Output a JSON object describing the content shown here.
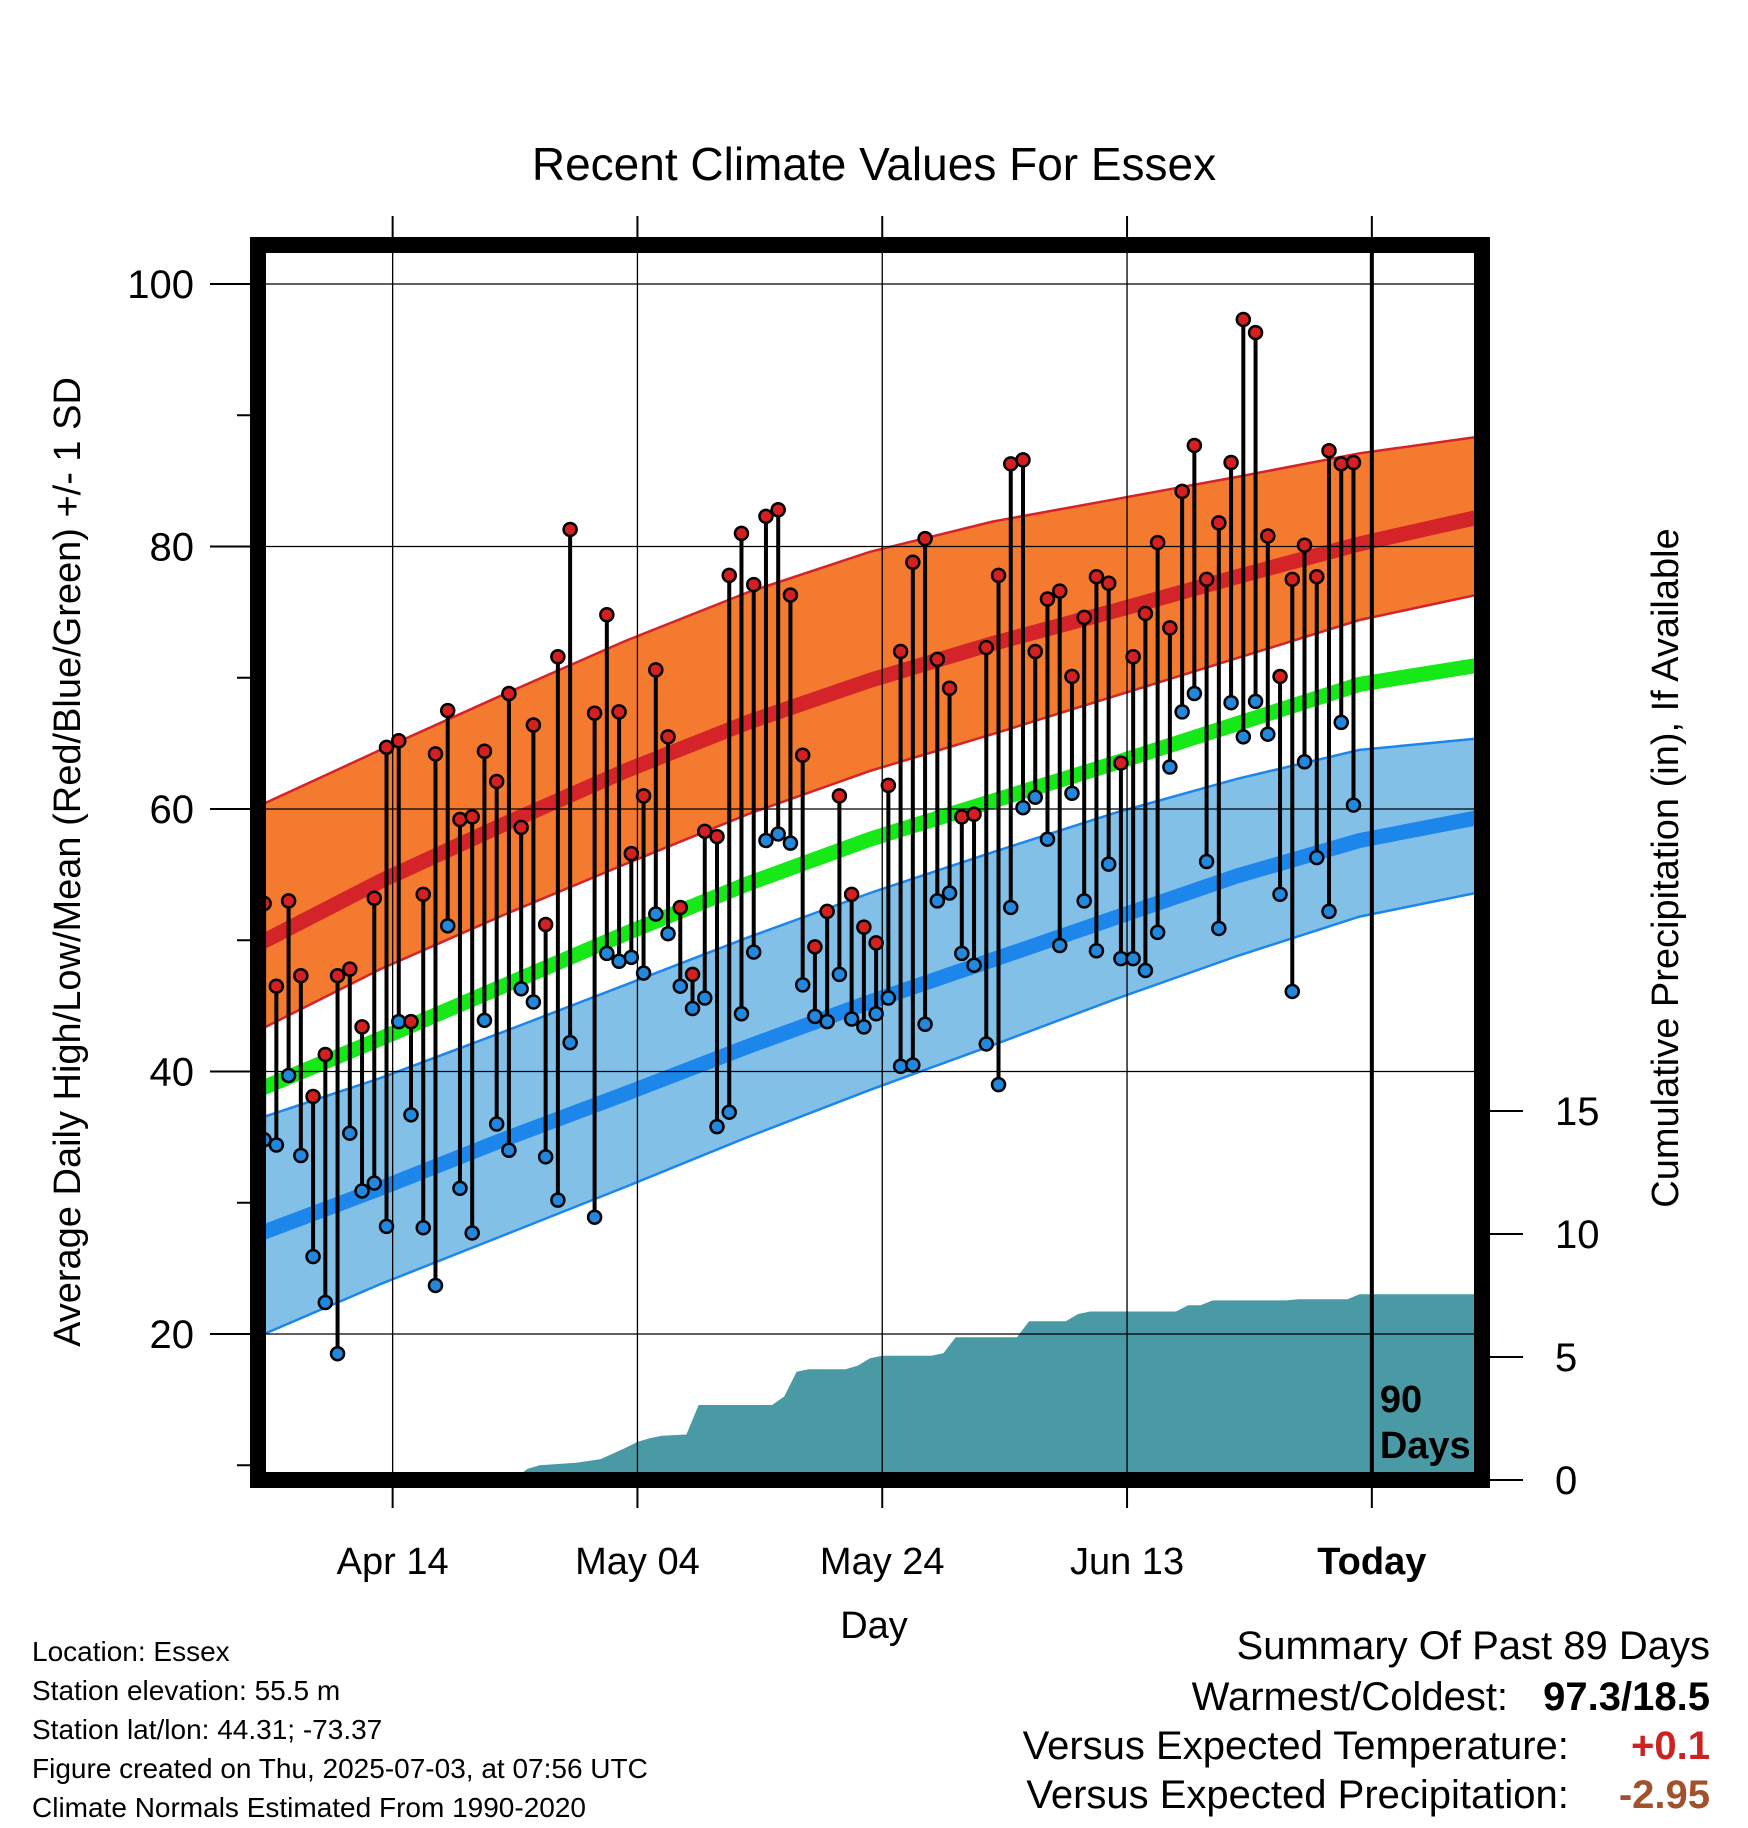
{
  "chart_data": {
    "type": "line",
    "title": "Recent Climate Values For Essex",
    "xlabel": "Day",
    "ylabel": "Average Daily High/Low/Mean (Red/Blue/Green) +/- 1 SD",
    "y2label": "Cumulative Precipitation (in), If Available",
    "x_ticks": [
      "Apr 14",
      "May 04",
      "May 24",
      "Jun 13",
      "Today"
    ],
    "x_tick_days": [
      11,
      31,
      51,
      71,
      91
    ],
    "xlim": [
      0,
      100
    ],
    "ylim": [
      9,
      102
    ],
    "y_ticks": [
      20,
      40,
      60,
      80,
      100
    ],
    "y2lim": [
      0,
      15
    ],
    "y2_ticks": [
      0,
      5,
      10,
      15
    ],
    "grid": true,
    "today_marker": {
      "day": 91,
      "label_line1": "90",
      "label_line2": "Days"
    },
    "normals": {
      "high_mean": [
        {
          "x": 0,
          "y": 49.7
        },
        {
          "x": 10,
          "y": 54.5
        },
        {
          "x": 20,
          "y": 58.8
        },
        {
          "x": 30,
          "y": 62.9
        },
        {
          "x": 40,
          "y": 66.6
        },
        {
          "x": 50,
          "y": 69.8
        },
        {
          "x": 60,
          "y": 72.6
        },
        {
          "x": 70,
          "y": 75.1
        },
        {
          "x": 80,
          "y": 77.7
        },
        {
          "x": 90,
          "y": 80.2
        },
        {
          "x": 100,
          "y": 82.3
        }
      ],
      "high_plus_sd": [
        {
          "x": 0,
          "y": 60.2
        },
        {
          "x": 10,
          "y": 64.5
        },
        {
          "x": 20,
          "y": 68.7
        },
        {
          "x": 30,
          "y": 72.8
        },
        {
          "x": 40,
          "y": 76.5
        },
        {
          "x": 50,
          "y": 79.6
        },
        {
          "x": 60,
          "y": 81.9
        },
        {
          "x": 70,
          "y": 83.6
        },
        {
          "x": 80,
          "y": 85.3
        },
        {
          "x": 90,
          "y": 87.1
        },
        {
          "x": 100,
          "y": 88.4
        }
      ],
      "high_minus_sd": [
        {
          "x": 0,
          "y": 43.1
        },
        {
          "x": 10,
          "y": 47.8
        },
        {
          "x": 20,
          "y": 51.9
        },
        {
          "x": 30,
          "y": 55.8
        },
        {
          "x": 40,
          "y": 59.6
        },
        {
          "x": 50,
          "y": 62.9
        },
        {
          "x": 60,
          "y": 65.7
        },
        {
          "x": 70,
          "y": 68.6
        },
        {
          "x": 80,
          "y": 71.5
        },
        {
          "x": 90,
          "y": 74.4
        },
        {
          "x": 100,
          "y": 76.4
        }
      ],
      "mean": [
        {
          "x": 0,
          "y": 38.6
        },
        {
          "x": 10,
          "y": 42.5
        },
        {
          "x": 20,
          "y": 46.5
        },
        {
          "x": 30,
          "y": 50.5
        },
        {
          "x": 40,
          "y": 54.3
        },
        {
          "x": 50,
          "y": 57.7
        },
        {
          "x": 60,
          "y": 60.6
        },
        {
          "x": 70,
          "y": 63.5
        },
        {
          "x": 80,
          "y": 66.5
        },
        {
          "x": 90,
          "y": 69.5
        },
        {
          "x": 100,
          "y": 71.0
        }
      ],
      "low_mean": [
        {
          "x": 0,
          "y": 27.6
        },
        {
          "x": 10,
          "y": 31.1
        },
        {
          "x": 20,
          "y": 34.8
        },
        {
          "x": 30,
          "y": 38.3
        },
        {
          "x": 40,
          "y": 41.9
        },
        {
          "x": 50,
          "y": 45.3
        },
        {
          "x": 60,
          "y": 48.5
        },
        {
          "x": 70,
          "y": 51.7
        },
        {
          "x": 80,
          "y": 54.9
        },
        {
          "x": 90,
          "y": 57.6
        },
        {
          "x": 100,
          "y": 59.4
        }
      ],
      "low_plus_sd": [
        {
          "x": 0,
          "y": 36.4
        },
        {
          "x": 10,
          "y": 39.5
        },
        {
          "x": 20,
          "y": 43.0
        },
        {
          "x": 30,
          "y": 46.6
        },
        {
          "x": 40,
          "y": 50.2
        },
        {
          "x": 50,
          "y": 53.6
        },
        {
          "x": 60,
          "y": 56.7
        },
        {
          "x": 70,
          "y": 59.7
        },
        {
          "x": 80,
          "y": 62.3
        },
        {
          "x": 90,
          "y": 64.5
        },
        {
          "x": 100,
          "y": 65.4
        }
      ],
      "low_minus_sd": [
        {
          "x": 0,
          "y": 19.8
        },
        {
          "x": 10,
          "y": 23.8
        },
        {
          "x": 20,
          "y": 27.5
        },
        {
          "x": 30,
          "y": 31.2
        },
        {
          "x": 40,
          "y": 35.0
        },
        {
          "x": 50,
          "y": 38.6
        },
        {
          "x": 60,
          "y": 42.0
        },
        {
          "x": 70,
          "y": 45.5
        },
        {
          "x": 80,
          "y": 48.8
        },
        {
          "x": 90,
          "y": 51.8
        },
        {
          "x": 100,
          "y": 53.7
        }
      ]
    },
    "daily": [
      {
        "x": 0.5,
        "high": 52.8,
        "low": 34.8
      },
      {
        "x": 1.5,
        "high": 46.5,
        "low": 34.4
      },
      {
        "x": 2.5,
        "high": 53.0,
        "low": 39.7
      },
      {
        "x": 3.5,
        "high": 47.3,
        "low": 33.6
      },
      {
        "x": 4.5,
        "high": 38.1,
        "low": 25.9
      },
      {
        "x": 5.5,
        "high": 41.3,
        "low": 22.4
      },
      {
        "x": 6.5,
        "high": 47.3,
        "low": 18.5
      },
      {
        "x": 7.5,
        "high": 47.8,
        "low": 35.3
      },
      {
        "x": 8.5,
        "high": 43.4,
        "low": 30.9
      },
      {
        "x": 9.5,
        "high": 53.2,
        "low": 31.5
      },
      {
        "x": 10.5,
        "high": 64.7,
        "low": 28.2
      },
      {
        "x": 11.5,
        "high": 65.2,
        "low": 43.8
      },
      {
        "x": 12.5,
        "high": 43.8,
        "low": 36.7
      },
      {
        "x": 13.5,
        "high": 53.5,
        "low": 28.1
      },
      {
        "x": 14.5,
        "high": 64.2,
        "low": 23.7
      },
      {
        "x": 15.5,
        "high": 67.5,
        "low": 51.1
      },
      {
        "x": 16.5,
        "high": 59.2,
        "low": 31.1
      },
      {
        "x": 17.5,
        "high": 59.4,
        "low": 27.7
      },
      {
        "x": 18.5,
        "high": 64.4,
        "low": 43.9
      },
      {
        "x": 19.5,
        "high": 62.1,
        "low": 36.0
      },
      {
        "x": 20.5,
        "high": 68.8,
        "low": 34.0
      },
      {
        "x": 21.5,
        "high": 58.6,
        "low": 46.3
      },
      {
        "x": 22.5,
        "high": 66.4,
        "low": 45.3
      },
      {
        "x": 23.5,
        "high": 51.2,
        "low": 33.5
      },
      {
        "x": 24.5,
        "high": 71.6,
        "low": 30.2
      },
      {
        "x": 25.5,
        "high": 81.3,
        "low": 42.2
      },
      {
        "x": 27.5,
        "high": 67.3,
        "low": 28.9
      },
      {
        "x": 28.5,
        "high": 74.8,
        "low": 49.0
      },
      {
        "x": 29.5,
        "high": 67.4,
        "low": 48.4
      },
      {
        "x": 30.5,
        "high": 56.6,
        "low": 48.7
      },
      {
        "x": 31.5,
        "high": 61.0,
        "low": 47.5
      },
      {
        "x": 32.5,
        "high": 70.6,
        "low": 52.0
      },
      {
        "x": 33.5,
        "high": 65.5,
        "low": 50.5
      },
      {
        "x": 34.5,
        "high": 52.5,
        "low": 46.5
      },
      {
        "x": 35.5,
        "high": 47.4,
        "low": 44.8
      },
      {
        "x": 36.5,
        "high": 58.3,
        "low": 45.6
      },
      {
        "x": 37.5,
        "high": 57.9,
        "low": 35.8
      },
      {
        "x": 38.5,
        "high": 77.8,
        "low": 36.9
      },
      {
        "x": 39.5,
        "high": 81.0,
        "low": 44.4
      },
      {
        "x": 40.5,
        "high": 77.1,
        "low": 49.1
      },
      {
        "x": 41.5,
        "high": 82.3,
        "low": 57.6
      },
      {
        "x": 42.5,
        "high": 82.8,
        "low": 58.1
      },
      {
        "x": 43.5,
        "high": 76.3,
        "low": 57.4
      },
      {
        "x": 44.5,
        "high": 64.1,
        "low": 46.6
      },
      {
        "x": 45.5,
        "high": 49.5,
        "low": 44.2
      },
      {
        "x": 46.5,
        "high": 52.2,
        "low": 43.8
      },
      {
        "x": 47.5,
        "high": 61.0,
        "low": 47.4
      },
      {
        "x": 48.5,
        "high": 53.5,
        "low": 44.0
      },
      {
        "x": 49.5,
        "high": 51.0,
        "low": 43.4
      },
      {
        "x": 50.5,
        "high": 49.8,
        "low": 44.4
      },
      {
        "x": 51.5,
        "high": 61.8,
        "low": 45.6
      },
      {
        "x": 52.5,
        "high": 72.0,
        "low": 40.4
      },
      {
        "x": 53.5,
        "high": 78.8,
        "low": 40.5
      },
      {
        "x": 54.5,
        "high": 80.6,
        "low": 43.6
      },
      {
        "x": 55.5,
        "high": 71.4,
        "low": 53.0
      },
      {
        "x": 56.5,
        "high": 69.2,
        "low": 53.6
      },
      {
        "x": 57.5,
        "high": 59.4,
        "low": 49.0
      },
      {
        "x": 58.5,
        "high": 59.6,
        "low": 48.1
      },
      {
        "x": 59.5,
        "high": 72.3,
        "low": 42.1
      },
      {
        "x": 60.5,
        "high": 77.8,
        "low": 39.0
      },
      {
        "x": 61.5,
        "high": 86.3,
        "low": 52.5
      },
      {
        "x": 62.5,
        "high": 86.6,
        "low": 60.1
      },
      {
        "x": 63.5,
        "high": 72.0,
        "low": 60.9
      },
      {
        "x": 64.5,
        "high": 76.0,
        "low": 57.7
      },
      {
        "x": 65.5,
        "high": 76.6,
        "low": 49.6
      },
      {
        "x": 66.5,
        "high": 70.1,
        "low": 61.2
      },
      {
        "x": 67.5,
        "high": 74.6,
        "low": 53.0
      },
      {
        "x": 68.5,
        "high": 77.7,
        "low": 49.2
      },
      {
        "x": 69.5,
        "high": 77.2,
        "low": 55.8
      },
      {
        "x": 70.5,
        "high": 63.5,
        "low": 48.6
      },
      {
        "x": 71.5,
        "high": 71.6,
        "low": 48.6
      },
      {
        "x": 72.5,
        "high": 74.9,
        "low": 47.7
      },
      {
        "x": 73.5,
        "high": 80.3,
        "low": 50.6
      },
      {
        "x": 74.5,
        "high": 73.8,
        "low": 63.2
      },
      {
        "x": 75.5,
        "high": 84.2,
        "low": 67.4
      },
      {
        "x": 76.5,
        "high": 87.7,
        "low": 68.8
      },
      {
        "x": 77.5,
        "high": 77.5,
        "low": 56.0
      },
      {
        "x": 78.5,
        "high": 81.8,
        "low": 50.9
      },
      {
        "x": 79.5,
        "high": 86.4,
        "low": 68.1
      },
      {
        "x": 80.5,
        "high": 97.3,
        "low": 65.5
      },
      {
        "x": 81.5,
        "high": 96.3,
        "low": 68.2
      },
      {
        "x": 82.5,
        "high": 80.8,
        "low": 65.7
      },
      {
        "x": 83.5,
        "high": 70.1,
        "low": 53.5
      },
      {
        "x": 84.5,
        "high": 77.5,
        "low": 46.1
      },
      {
        "x": 85.5,
        "high": 80.1,
        "low": 63.6
      },
      {
        "x": 86.5,
        "high": 77.7,
        "low": 56.3
      },
      {
        "x": 87.5,
        "high": 87.3,
        "low": 52.2
      },
      {
        "x": 88.5,
        "high": 86.3,
        "low": 66.6
      },
      {
        "x": 89.5,
        "high": 86.4,
        "low": 60.3
      }
    ],
    "precipitation_cumulative": [
      {
        "x": 0,
        "y": 0
      },
      {
        "x": 15,
        "y": 0
      },
      {
        "x": 15.5,
        "y": 0.05
      },
      {
        "x": 21,
        "y": 0.05
      },
      {
        "x": 22,
        "y": 0.45
      },
      {
        "x": 23,
        "y": 0.6
      },
      {
        "x": 26,
        "y": 0.7
      },
      {
        "x": 28,
        "y": 0.85
      },
      {
        "x": 30,
        "y": 1.3
      },
      {
        "x": 31,
        "y": 1.55
      },
      {
        "x": 32,
        "y": 1.7
      },
      {
        "x": 33,
        "y": 1.8
      },
      {
        "x": 35,
        "y": 1.85
      },
      {
        "x": 36,
        "y": 3.05
      },
      {
        "x": 42,
        "y": 3.05
      },
      {
        "x": 43,
        "y": 3.4
      },
      {
        "x": 44,
        "y": 4.4
      },
      {
        "x": 45,
        "y": 4.5
      },
      {
        "x": 48,
        "y": 4.5
      },
      {
        "x": 49,
        "y": 4.65
      },
      {
        "x": 50,
        "y": 4.95
      },
      {
        "x": 51,
        "y": 5.05
      },
      {
        "x": 55,
        "y": 5.05
      },
      {
        "x": 56,
        "y": 5.15
      },
      {
        "x": 57,
        "y": 5.8
      },
      {
        "x": 62,
        "y": 5.8
      },
      {
        "x": 63,
        "y": 6.45
      },
      {
        "x": 66,
        "y": 6.45
      },
      {
        "x": 67,
        "y": 6.75
      },
      {
        "x": 68,
        "y": 6.85
      },
      {
        "x": 75,
        "y": 6.85
      },
      {
        "x": 76,
        "y": 7.1
      },
      {
        "x": 77,
        "y": 7.1
      },
      {
        "x": 78,
        "y": 7.3
      },
      {
        "x": 84,
        "y": 7.3
      },
      {
        "x": 85,
        "y": 7.35
      },
      {
        "x": 89,
        "y": 7.35
      },
      {
        "x": 90,
        "y": 7.55
      },
      {
        "x": 100,
        "y": 7.55
      }
    ],
    "colors": {
      "high_band": "#f37a2e",
      "high_line": "#d4242a",
      "mean_line": "#17e817",
      "low_band": "#82c0e8",
      "low_line": "#1c86ea",
      "precip": "#4a9aa5",
      "high_point": "#d42020",
      "low_point": "#2288dd"
    }
  },
  "info": {
    "location": "Location: Essex",
    "elevation": "Station elevation: 55.5 m",
    "latlon": "Station lat/lon: 44.31; -73.37",
    "created": "Figure created on Thu, 2025-07-03, at 07:56 UTC",
    "normals": "Climate Normals Estimated From 1990-2020"
  },
  "summary": {
    "heading": "Summary Of Past 89 Days",
    "warmest_label": "Warmest/Coldest:",
    "warmest_value": "97.3/18.5",
    "temp_label": "Versus Expected Temperature:",
    "temp_value": "+0.1",
    "temp_color": "#cc2222",
    "precip_label": "Versus Expected Precipitation:",
    "precip_value": "-2.95",
    "precip_color": "#a0522d"
  }
}
